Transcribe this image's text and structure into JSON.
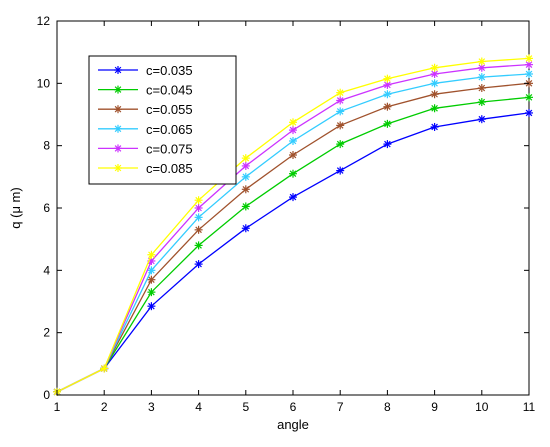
{
  "chart_data": {
    "type": "line",
    "title": "",
    "xlabel": "angle",
    "ylabel": "q (μ m)",
    "xlim": [
      1,
      11
    ],
    "ylim": [
      0,
      12
    ],
    "x_ticks": [
      "1",
      "2",
      "3",
      "4",
      "5",
      "6",
      "7",
      "8",
      "9",
      "10",
      "11"
    ],
    "y_ticks": [
      "0",
      "2",
      "4",
      "6",
      "8",
      "10",
      "12"
    ],
    "grid": false,
    "legend_position": "top-left",
    "marker": "asterisk",
    "x": [
      1,
      2,
      3,
      4,
      5,
      6,
      7,
      8,
      9,
      10,
      11
    ],
    "series": [
      {
        "name": "c=0.035",
        "color": "#0000ff",
        "values": [
          0.1,
          0.85,
          2.85,
          4.2,
          5.35,
          6.35,
          7.2,
          8.05,
          8.6,
          8.85,
          9.05
        ]
      },
      {
        "name": "c=0.045",
        "color": "#00cc00",
        "values": [
          0.1,
          0.85,
          3.3,
          4.8,
          6.05,
          7.1,
          8.05,
          8.7,
          9.2,
          9.4,
          9.55
        ]
      },
      {
        "name": "c=0.055",
        "color": "#a0522d",
        "values": [
          0.1,
          0.85,
          3.7,
          5.3,
          6.6,
          7.7,
          8.65,
          9.25,
          9.65,
          9.85,
          10.0
        ]
      },
      {
        "name": "c=0.065",
        "color": "#33ccff",
        "values": [
          0.1,
          0.85,
          4.0,
          5.7,
          7.0,
          8.15,
          9.1,
          9.65,
          10.0,
          10.2,
          10.3
        ]
      },
      {
        "name": "c=0.075",
        "color": "#cc33ff",
        "values": [
          0.1,
          0.85,
          4.3,
          6.0,
          7.35,
          8.5,
          9.45,
          9.95,
          10.3,
          10.5,
          10.6
        ]
      },
      {
        "name": "c=0.085",
        "color": "#ffff00",
        "values": [
          0.1,
          0.85,
          4.5,
          6.25,
          7.6,
          8.75,
          9.7,
          10.15,
          10.5,
          10.7,
          10.8
        ]
      }
    ]
  }
}
